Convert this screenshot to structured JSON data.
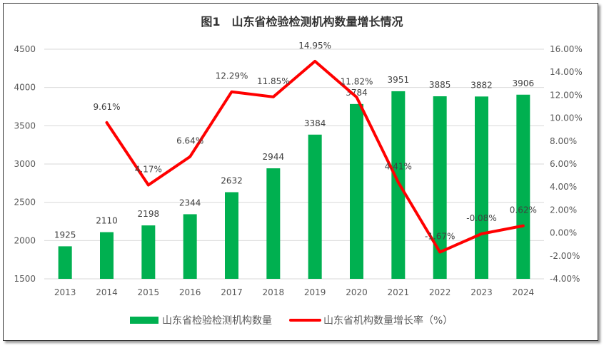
{
  "chart_data": {
    "type": "bar+line",
    "title": "图1　山东省检验检测机构数量增长情况",
    "categories": [
      "2013",
      "2014",
      "2015",
      "2016",
      "2017",
      "2018",
      "2019",
      "2020",
      "2021",
      "2022",
      "2023",
      "2024"
    ],
    "series": [
      {
        "name": "山东省检验检测机构数量",
        "type": "bar",
        "axis": "left",
        "color": "#00B050",
        "values": [
          1925,
          2110,
          2198,
          2344,
          2632,
          2944,
          3384,
          3784,
          3951,
          3885,
          3882,
          3906
        ],
        "labels": [
          "1925",
          "2110",
          "2198",
          "2344",
          "2632",
          "2944",
          "3384",
          "3784",
          "3951",
          "3885",
          "3882",
          "3906"
        ]
      },
      {
        "name": "山东省机构数量增长率（%）",
        "type": "line",
        "axis": "right",
        "color": "#FF0000",
        "values": [
          null,
          9.61,
          4.17,
          6.64,
          12.29,
          11.85,
          14.95,
          11.82,
          4.41,
          -1.67,
          -0.08,
          0.62
        ],
        "labels": [
          "",
          "9.61%",
          "4.17%",
          "6.64%",
          "12.29%",
          "11.85%",
          "14.95%",
          "11.82%",
          "4.41%",
          "-1.67%",
          "-0.08%",
          "0.62%"
        ]
      }
    ],
    "y_left": {
      "range": [
        1500,
        4500
      ],
      "ticks": [
        "1500",
        "2000",
        "2500",
        "3000",
        "3500",
        "4000",
        "4500"
      ]
    },
    "y_right": {
      "range": [
        -4,
        16
      ],
      "ticks": [
        "-4.00%",
        "-2.00%",
        "0.00%",
        "2.00%",
        "4.00%",
        "6.00%",
        "8.00%",
        "10.00%",
        "12.00%",
        "14.00%",
        "16.00%"
      ]
    },
    "grid": "horizontal",
    "legend": "bottom"
  }
}
